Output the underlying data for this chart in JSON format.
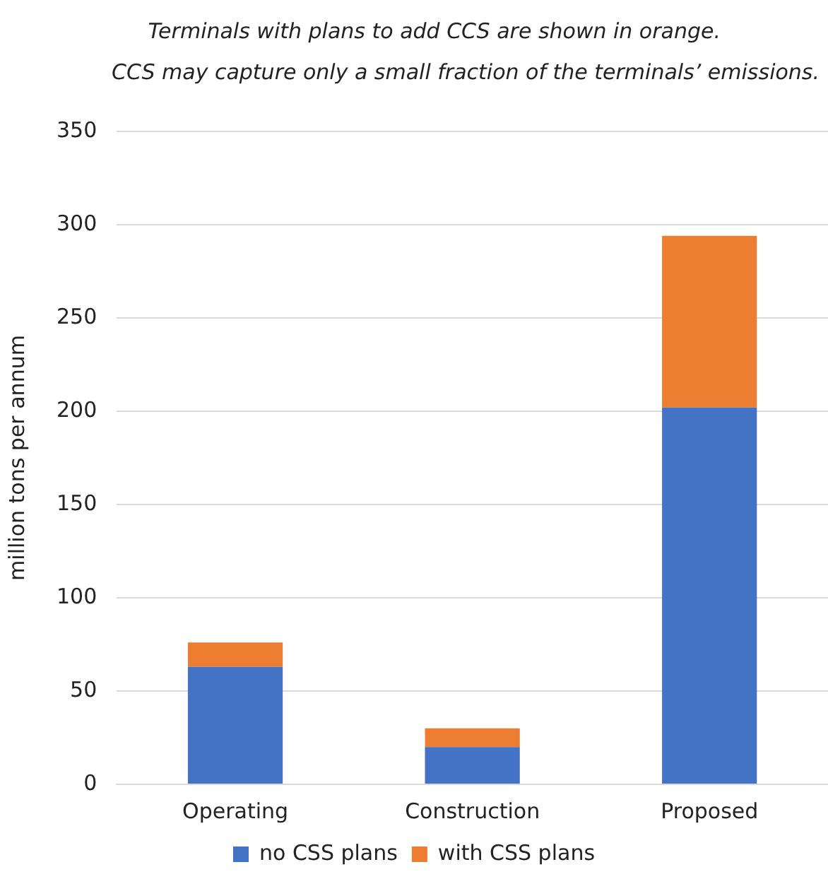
{
  "chart_data": {
    "type": "bar",
    "subtitle": "Terminals with plans to add CCS are shown in orange.\nCCS may capture only a small fraction of the terminals’ emissions.",
    "ylabel": "million tons per annum",
    "categories": [
      "Operating",
      "Construction",
      "Proposed"
    ],
    "series": [
      {
        "name": "no CSS plans",
        "color": "#4472c4",
        "values": [
          63,
          20,
          202
        ]
      },
      {
        "name": "with CSS plans",
        "color": "#ed7d31",
        "values": [
          13,
          10,
          92
        ]
      }
    ],
    "stacked": true,
    "ylim": [
      0,
      350
    ],
    "yticks": [
      0,
      50,
      100,
      150,
      200,
      250,
      300,
      350
    ],
    "grid": "y",
    "legend": "bottom"
  }
}
